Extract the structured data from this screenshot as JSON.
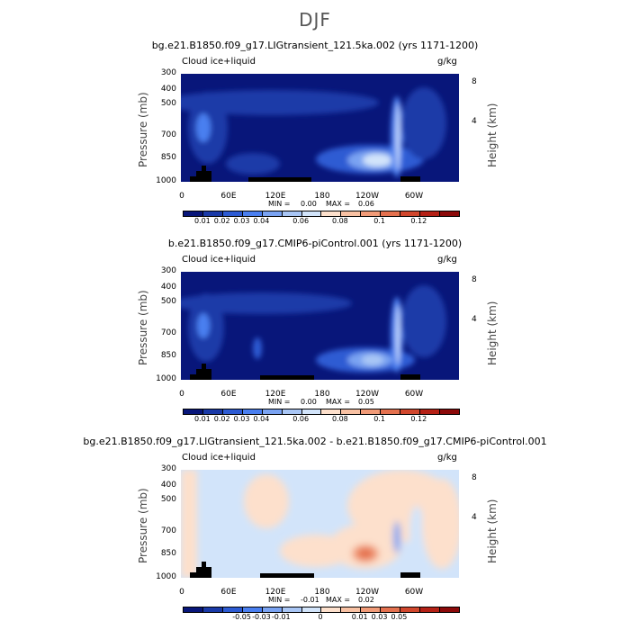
{
  "title": "DJF",
  "chart_data": [
    {
      "type": "heatmap",
      "title": "bg.e21.B1850.f09_g17.LIGtransient_121.5ka.002 (yrs 1171-1200)",
      "variable_label": "Cloud ice+liquid",
      "units": "g/kg",
      "ylabel": "Pressure (mb)",
      "ylabel_right": "Height (km)",
      "x_ticks": [
        "0",
        "60E",
        "120E",
        "180",
        "120W",
        "60W"
      ],
      "y_ticks": [
        "300",
        "400",
        "500",
        "700",
        "850",
        "1000"
      ],
      "height_ticks": [
        "8",
        "4"
      ],
      "min_label": "MIN =",
      "min_value": "0.00",
      "max_label": "MAX =",
      "max_value": "0.06",
      "colorbar_labels": [
        "0.01",
        "0.02",
        "0.03",
        "0.04",
        "0.06",
        "0.08",
        "0.1",
        "0.12"
      ],
      "colorbar_colors": [
        "#08167a",
        "#1a3aa8",
        "#2d5bd3",
        "#4a7ff0",
        "#7aa3f2",
        "#a9c6f5",
        "#d2e4fa",
        "#fde0cc",
        "#f8c1a3",
        "#f19b78",
        "#e4714f",
        "#d1472d",
        "#b52116",
        "#8c0a0a"
      ]
    },
    {
      "type": "heatmap",
      "title": "b.e21.B1850.f09_g17.CMIP6-piControl.001 (yrs 1171-1200)",
      "variable_label": "Cloud ice+liquid",
      "units": "g/kg",
      "ylabel": "Pressure (mb)",
      "ylabel_right": "Height (km)",
      "x_ticks": [
        "0",
        "60E",
        "120E",
        "180",
        "120W",
        "60W"
      ],
      "y_ticks": [
        "300",
        "400",
        "500",
        "700",
        "850",
        "1000"
      ],
      "height_ticks": [
        "8",
        "4"
      ],
      "min_label": "MIN =",
      "min_value": "0.00",
      "max_label": "MAX =",
      "max_value": "0.05",
      "colorbar_labels": [
        "0.01",
        "0.02",
        "0.03",
        "0.04",
        "0.06",
        "0.08",
        "0.1",
        "0.12"
      ],
      "colorbar_colors": [
        "#08167a",
        "#1a3aa8",
        "#2d5bd3",
        "#4a7ff0",
        "#7aa3f2",
        "#a9c6f5",
        "#d2e4fa",
        "#fde0cc",
        "#f8c1a3",
        "#f19b78",
        "#e4714f",
        "#d1472d",
        "#b52116",
        "#8c0a0a"
      ]
    },
    {
      "type": "heatmap",
      "title": "bg.e21.B1850.f09_g17.LIGtransient_121.5ka.002 - b.e21.B1850.f09_g17.CMIP6-piControl.001",
      "variable_label": "Cloud ice+liquid",
      "units": "g/kg",
      "ylabel": "Pressure (mb)",
      "ylabel_right": "Height (km)",
      "x_ticks": [
        "0",
        "60E",
        "120E",
        "180",
        "120W",
        "60W"
      ],
      "y_ticks": [
        "300",
        "400",
        "500",
        "700",
        "850",
        "1000"
      ],
      "height_ticks": [
        "8",
        "4"
      ],
      "min_label": "MIN =",
      "min_value": "-0.01",
      "max_label": "MAX =",
      "max_value": "0.02",
      "colorbar_labels": [
        "-0.05",
        "-0.03",
        "-0.01",
        "0",
        "0.01",
        "0.03",
        "0.05"
      ],
      "colorbar_colors": [
        "#08167a",
        "#1a3aa8",
        "#2d5bd3",
        "#4a7ff0",
        "#7aa3f2",
        "#a9c6f5",
        "#d2e4fa",
        "#fde0cc",
        "#f8c1a3",
        "#f19b78",
        "#e4714f",
        "#d1472d",
        "#b52116",
        "#8c0a0a"
      ]
    }
  ]
}
